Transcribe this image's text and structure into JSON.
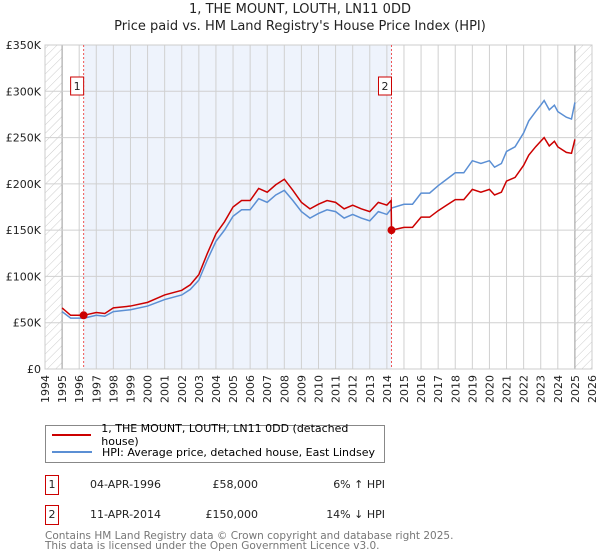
{
  "chart_data": {
    "type": "line",
    "title": "1, THE MOUNT, LOUTH, LN11 0DD",
    "subtitle": "Price paid vs. HM Land Registry's House Price Index (HPI)",
    "xlim": [
      1994,
      2026
    ],
    "ylim": [
      0,
      350000
    ],
    "x_ticks": [
      "1994",
      "1995",
      "1996",
      "1997",
      "1998",
      "1999",
      "2000",
      "2001",
      "2002",
      "2003",
      "2004",
      "2005",
      "2006",
      "2007",
      "2008",
      "2009",
      "2010",
      "2011",
      "2012",
      "2013",
      "2014",
      "2015",
      "2016",
      "2017",
      "2018",
      "2019",
      "2020",
      "2021",
      "2022",
      "2023",
      "2024",
      "2025",
      "2026"
    ],
    "y_ticks": [
      {
        "v": 0,
        "label": "£0"
      },
      {
        "v": 50000,
        "label": "£50K"
      },
      {
        "v": 100000,
        "label": "£100K"
      },
      {
        "v": 150000,
        "label": "£150K"
      },
      {
        "v": 200000,
        "label": "£200K"
      },
      {
        "v": 250000,
        "label": "£250K"
      },
      {
        "v": 300000,
        "label": "£300K"
      },
      {
        "v": 350000,
        "label": "£350K"
      }
    ],
    "grid": true,
    "shaded_range": [
      1996.26,
      2014.27
    ],
    "hatched_before": 1995,
    "hatched_after": 2025,
    "series": [
      {
        "name": "1, THE MOUNT, LOUTH, LN11 0DD (detached house)",
        "color": "#cc0000",
        "x": [
          1995,
          1995.5,
          1996,
          1996.26,
          1997,
          1997.5,
          1998,
          1999,
          2000,
          2001,
          2002,
          2002.5,
          2003,
          2003.5,
          2004,
          2004.5,
          2005,
          2005.5,
          2006,
          2006.5,
          2007,
          2007.5,
          2008,
          2008.5,
          2009,
          2009.5,
          2010,
          2010.5,
          2011,
          2011.5,
          2012,
          2012.5,
          2013,
          2013.5,
          2014,
          2014.25,
          2014.27,
          2015,
          2015.5,
          2016,
          2016.5,
          2017,
          2017.5,
          2018,
          2018.5,
          2019,
          2019.5,
          2020,
          2020.3,
          2020.7,
          2021,
          2021.5,
          2022,
          2022.3,
          2022.7,
          2023,
          2023.2,
          2023.5,
          2023.8,
          2024,
          2024.5,
          2024.8,
          2025
        ],
        "y": [
          66000,
          58000,
          58000,
          58000,
          61000,
          60000,
          66000,
          68000,
          72000,
          80000,
          85000,
          91000,
          102000,
          125000,
          146000,
          159000,
          175000,
          182000,
          182000,
          195000,
          191000,
          199000,
          205000,
          193000,
          180000,
          173000,
          178000,
          182000,
          180000,
          173000,
          177000,
          173000,
          170000,
          180000,
          177000,
          182000,
          150000,
          153000,
          153000,
          164000,
          164000,
          171000,
          177000,
          183000,
          183000,
          194000,
          191000,
          194000,
          188000,
          191000,
          203000,
          207000,
          220000,
          231000,
          240000,
          246000,
          250000,
          241000,
          246000,
          240000,
          234000,
          233000,
          248000
        ]
      },
      {
        "name": "HPI: Average price, detached house, East Lindsey",
        "color": "#5b8fd4",
        "x": [
          1995,
          1995.5,
          1996,
          1996.3,
          1997,
          1997.5,
          1998,
          1999,
          2000,
          2001,
          2002,
          2002.5,
          2003,
          2003.5,
          2004,
          2004.5,
          2005,
          2005.5,
          2006,
          2006.5,
          2007,
          2007.5,
          2008,
          2008.5,
          2009,
          2009.5,
          2010,
          2010.5,
          2011,
          2011.5,
          2012,
          2012.5,
          2013,
          2013.5,
          2014,
          2014.3,
          2015,
          2015.5,
          2016,
          2016.5,
          2017,
          2017.5,
          2018,
          2018.5,
          2019,
          2019.5,
          2020,
          2020.3,
          2020.7,
          2021,
          2021.5,
          2022,
          2022.3,
          2022.7,
          2023,
          2023.2,
          2023.5,
          2023.8,
          2024,
          2024.5,
          2024.8,
          2025
        ],
        "y": [
          62000,
          55000,
          55000,
          55000,
          58000,
          57000,
          62000,
          64000,
          68000,
          75000,
          80000,
          86000,
          96000,
          118000,
          138000,
          150000,
          165000,
          172000,
          172000,
          184000,
          180000,
          188000,
          193000,
          182000,
          170000,
          163000,
          168000,
          172000,
          170000,
          163000,
          167000,
          163000,
          160000,
          170000,
          167000,
          174000,
          178000,
          178000,
          190000,
          190000,
          198000,
          205000,
          212000,
          212000,
          225000,
          222000,
          225000,
          218000,
          222000,
          235000,
          240000,
          255000,
          268000,
          278000,
          285000,
          290000,
          280000,
          285000,
          278000,
          272000,
          270000,
          288000
        ]
      }
    ],
    "annotations": [
      {
        "label": "1",
        "x": 1996.26,
        "y": 58000
      },
      {
        "label": "2",
        "x": 2014.27,
        "y": 150000
      }
    ],
    "legend_position": "below"
  },
  "table": [
    {
      "id": "1",
      "date": "04-APR-1996",
      "price": "£58,000",
      "hpi": "6% ↑ HPI"
    },
    {
      "id": "2",
      "date": "11-APR-2014",
      "price": "£150,000",
      "hpi": "14% ↓ HPI"
    }
  ],
  "footer": {
    "line1": "Contains HM Land Registry data © Crown copyright and database right 2025.",
    "line2": "This data is licensed under the Open Government Licence v3.0."
  }
}
